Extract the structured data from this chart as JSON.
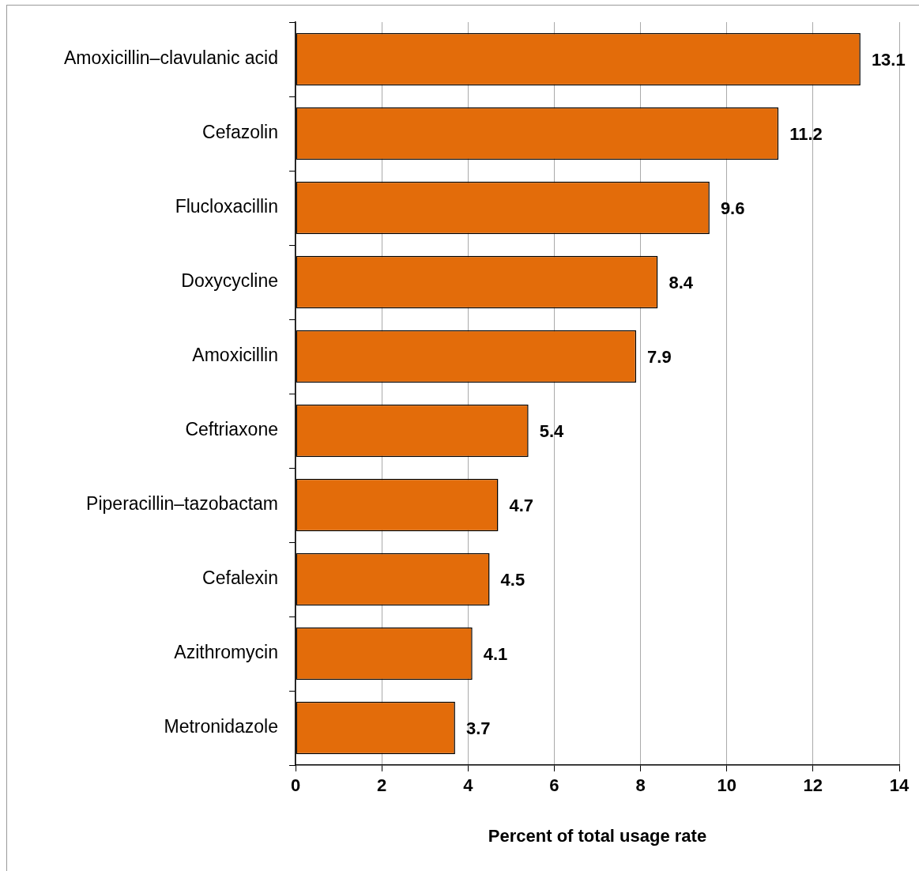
{
  "chart_data": {
    "type": "bar",
    "orientation": "horizontal",
    "xlabel": "Percent of total usage rate",
    "categories": [
      "Amoxicillin–clavulanic acid",
      "Cefazolin",
      "Flucloxacillin",
      "Doxycycline",
      "Amoxicillin",
      "Ceftriaxone",
      "Piperacillin–tazobactam",
      "Cefalexin",
      "Azithromycin",
      "Metronidazole"
    ],
    "values": [
      13.1,
      11.2,
      9.6,
      8.4,
      7.9,
      5.4,
      4.7,
      4.5,
      4.1,
      3.7
    ],
    "color": "#e36c0a",
    "xlim": [
      0,
      14
    ],
    "xticks": [
      0,
      2,
      4,
      6,
      8,
      10,
      12,
      14
    ],
    "grid": "x",
    "data_labels": true
  }
}
